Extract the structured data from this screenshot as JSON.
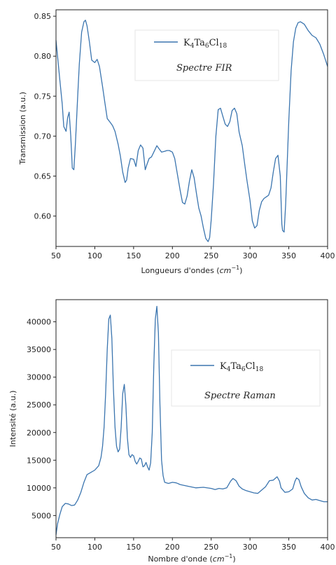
{
  "chart_data": [
    {
      "type": "line",
      "xlabel": "Longueurs d'ondes (",
      "xlabel_unit": "cm",
      "xlabel_exp": "−1",
      "xlabel_end": ")",
      "ylabel": "Transmission (a.u.)",
      "xlim": [
        50,
        400
      ],
      "ylim": [
        0.562,
        0.858
      ],
      "xticks": [
        "50",
        "100",
        "150",
        "200",
        "250",
        "300",
        "350",
        "400"
      ],
      "yticks": [
        "0.60",
        "0.65",
        "0.70",
        "0.75",
        "0.80",
        "0.85"
      ],
      "legend": {
        "position": "upper-center",
        "main": "K",
        "s1": "4",
        "m2": "Ta",
        "s2": "6",
        "m3": "Cl",
        "s3": "18"
      },
      "annotation": "Spectre FIR",
      "series_color": "#3b75af",
      "series": [
        {
          "x": [
            50,
            52,
            55,
            58,
            60,
            63,
            65,
            67,
            69,
            71,
            73,
            75,
            78,
            80,
            83,
            86,
            88,
            90,
            93,
            96,
            100,
            103,
            106,
            110,
            113,
            116,
            120,
            123,
            126,
            130,
            133,
            136,
            139,
            141,
            143,
            146,
            150,
            153,
            156,
            159,
            162,
            165,
            167,
            170,
            173,
            176,
            180,
            183,
            186,
            190,
            193,
            196,
            200,
            203,
            206,
            210,
            213,
            216,
            219,
            222,
            225,
            228,
            231,
            234,
            237,
            240,
            243,
            246,
            248,
            250,
            253,
            256,
            259,
            262,
            265,
            268,
            271,
            274,
            277,
            280,
            283,
            286,
            290,
            293,
            296,
            300,
            303,
            306,
            309,
            312,
            315,
            318,
            321,
            324,
            327,
            330,
            333,
            336,
            339,
            341,
            342,
            344,
            346,
            350,
            353,
            356,
            359,
            362,
            365,
            370,
            375,
            380,
            385,
            390,
            395,
            400
          ],
          "y": [
            0.82,
            0.8,
            0.77,
            0.74,
            0.712,
            0.706,
            0.723,
            0.73,
            0.7,
            0.66,
            0.658,
            0.69,
            0.75,
            0.79,
            0.83,
            0.843,
            0.845,
            0.838,
            0.818,
            0.795,
            0.792,
            0.796,
            0.787,
            0.762,
            0.742,
            0.722,
            0.717,
            0.713,
            0.706,
            0.69,
            0.675,
            0.655,
            0.642,
            0.645,
            0.66,
            0.672,
            0.671,
            0.662,
            0.682,
            0.689,
            0.685,
            0.658,
            0.664,
            0.672,
            0.674,
            0.68,
            0.688,
            0.684,
            0.68,
            0.681,
            0.682,
            0.682,
            0.68,
            0.672,
            0.655,
            0.632,
            0.617,
            0.615,
            0.625,
            0.644,
            0.658,
            0.648,
            0.628,
            0.61,
            0.6,
            0.585,
            0.572,
            0.568,
            0.573,
            0.595,
            0.64,
            0.7,
            0.733,
            0.735,
            0.725,
            0.715,
            0.712,
            0.718,
            0.732,
            0.735,
            0.728,
            0.705,
            0.688,
            0.666,
            0.645,
            0.62,
            0.594,
            0.585,
            0.588,
            0.607,
            0.618,
            0.622,
            0.624,
            0.626,
            0.635,
            0.655,
            0.672,
            0.676,
            0.65,
            0.59,
            0.582,
            0.58,
            0.615,
            0.72,
            0.782,
            0.818,
            0.835,
            0.842,
            0.843,
            0.84,
            0.832,
            0.826,
            0.823,
            0.815,
            0.802,
            0.787
          ]
        }
      ]
    },
    {
      "type": "line",
      "xlabel": "Nombre d'onde (",
      "xlabel_unit": "cm",
      "xlabel_exp": "−1",
      "xlabel_end": ")",
      "ylabel": "Intensité (a.u.)",
      "xlim": [
        50,
        400
      ],
      "ylim": [
        1000,
        44000
      ],
      "xticks": [
        "50",
        "100",
        "150",
        "200",
        "250",
        "300",
        "350",
        "400"
      ],
      "yticks": [
        "5000",
        "10000",
        "15000",
        "20000",
        "25000",
        "30000",
        "35000",
        "40000"
      ],
      "legend": {
        "position": "center-right",
        "main": "K",
        "s1": "4",
        "m2": "Ta",
        "s2": "6",
        "m3": "Cl",
        "s3": "18"
      },
      "annotation": "Spectre Raman",
      "series_color": "#3b75af",
      "series": [
        {
          "x": [
            50,
            52,
            55,
            58,
            62,
            66,
            70,
            74,
            78,
            82,
            86,
            90,
            95,
            100,
            105,
            108,
            110,
            112,
            114,
            116,
            118,
            120,
            122,
            124,
            126,
            128,
            130,
            132,
            134,
            136,
            138,
            140,
            142,
            144,
            146,
            148,
            150,
            152,
            154,
            156,
            158,
            160,
            162,
            164,
            166,
            168,
            170,
            172,
            174,
            176,
            178,
            180,
            182,
            184,
            186,
            188,
            190,
            195,
            200,
            205,
            210,
            220,
            230,
            240,
            250,
            255,
            260,
            265,
            270,
            275,
            278,
            282,
            286,
            290,
            295,
            300,
            305,
            310,
            315,
            320,
            325,
            330,
            335,
            338,
            340,
            345,
            350,
            355,
            358,
            360,
            363,
            366,
            370,
            375,
            380,
            385,
            390,
            395,
            400
          ],
          "y": [
            1500,
            3500,
            5200,
            6600,
            7200,
            7100,
            6800,
            6900,
            7800,
            9200,
            11000,
            12400,
            12800,
            13200,
            14000,
            15500,
            17500,
            21000,
            27000,
            35000,
            40500,
            41200,
            37000,
            28000,
            21000,
            17500,
            16500,
            17000,
            21000,
            27000,
            28700,
            25000,
            19000,
            16000,
            15500,
            16000,
            15800,
            14800,
            14300,
            14800,
            15400,
            15200,
            13800,
            14000,
            14600,
            13800,
            13200,
            14500,
            20000,
            32000,
            40500,
            42800,
            38000,
            25000,
            15000,
            12200,
            11000,
            10800,
            11000,
            10900,
            10600,
            10300,
            10000,
            10100,
            9900,
            9700,
            9900,
            9800,
            10000,
            11200,
            11700,
            11300,
            10300,
            9800,
            9500,
            9300,
            9100,
            9000,
            9600,
            10200,
            11300,
            11400,
            12000,
            11200,
            10000,
            9200,
            9300,
            9800,
            11200,
            11800,
            11500,
            10200,
            9000,
            8200,
            7800,
            7900,
            7700,
            7500,
            7500
          ]
        }
      ]
    }
  ]
}
